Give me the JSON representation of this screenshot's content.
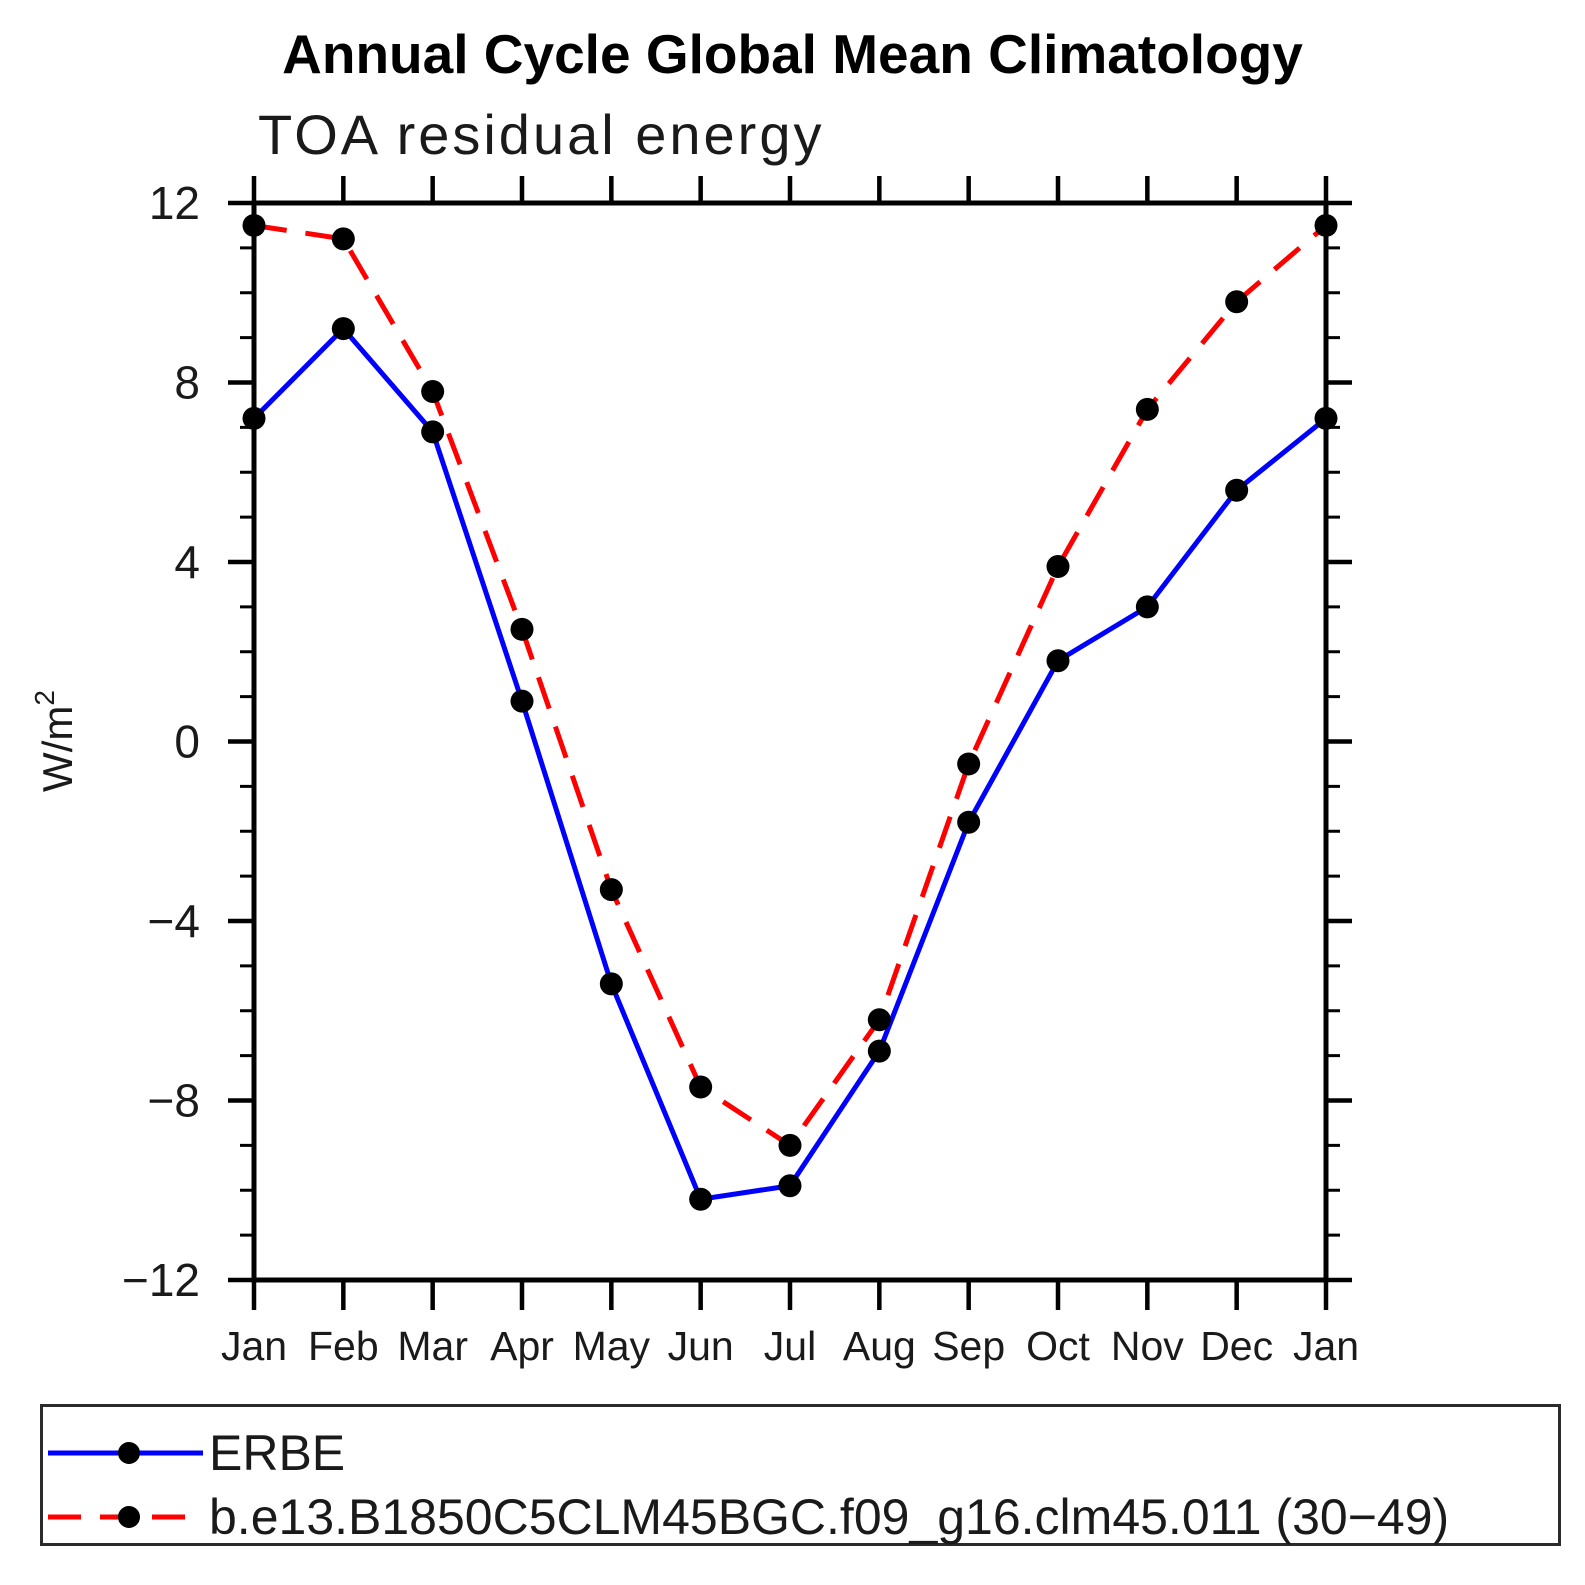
{
  "header": {
    "title": "Annual Cycle Global Mean Climatology",
    "subtitle": "TOA residual energy"
  },
  "chart_data": {
    "type": "line",
    "title": "Annual Cycle Global Mean Climatology",
    "subtitle": "TOA residual energy",
    "xlabel": "",
    "ylabel": "W/m²",
    "y_axis_label_parts": {
      "main": "W/m",
      "superscript": "2"
    },
    "categories": [
      "Jan",
      "Feb",
      "Mar",
      "Apr",
      "May",
      "Jun",
      "Jul",
      "Aug",
      "Sep",
      "Oct",
      "Nov",
      "Dec",
      "Jan"
    ],
    "ylim": [
      -12,
      12
    ],
    "ytick_major": [
      -12,
      -8,
      -4,
      0,
      4,
      8,
      12
    ],
    "ytick_minor_step": 1,
    "grid": false,
    "legend_position": "bottom",
    "series": [
      {
        "name": "ERBE",
        "color": "#0000ff",
        "line_style": "solid",
        "marker": "circle",
        "marker_color": "#000000",
        "values": [
          7.2,
          9.2,
          6.9,
          0.9,
          -5.4,
          -10.2,
          -9.9,
          -6.9,
          -1.8,
          1.8,
          3.0,
          5.6,
          7.2
        ]
      },
      {
        "name": "b.e13.B1850C5CLM45BGC.f09_g16.clm45.011 (30−49)",
        "color": "#ff0000",
        "line_style": "dashed",
        "marker": "circle",
        "marker_color": "#000000",
        "values": [
          11.5,
          11.2,
          7.8,
          2.5,
          -3.3,
          -7.7,
          -9.0,
          -6.2,
          -0.5,
          3.9,
          7.4,
          9.8,
          11.5
        ]
      }
    ]
  }
}
